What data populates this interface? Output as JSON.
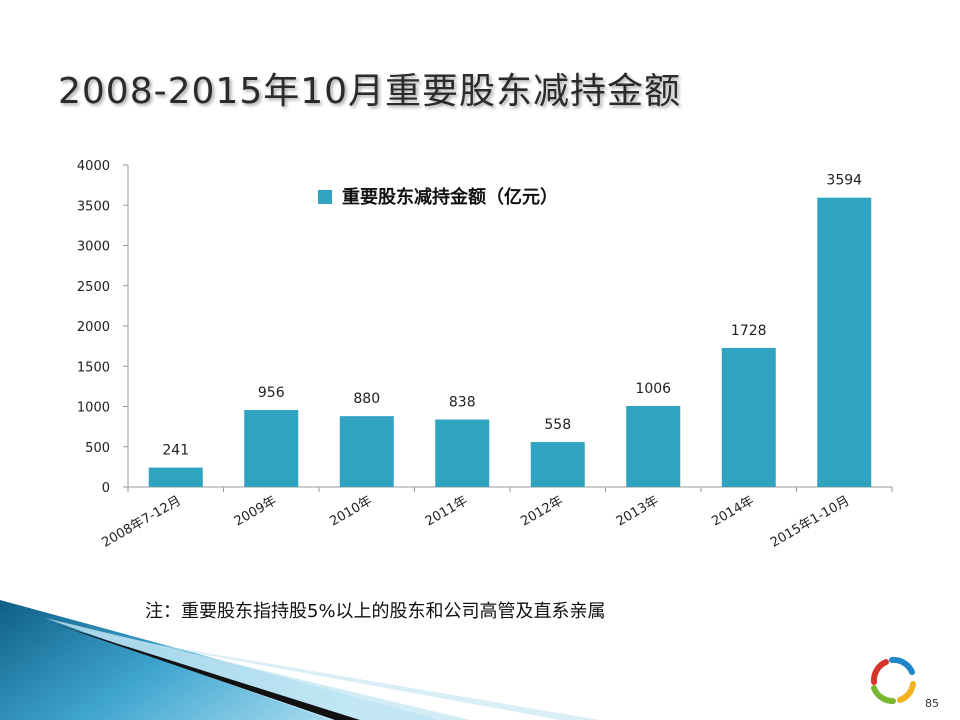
{
  "slide": {
    "title": "2008-2015年10月重要股东减持金额",
    "note": "注：重要股东指持股5%以上的股东和公司高管及直系亲属",
    "page_number": "85"
  },
  "colors": {
    "bar": "#2FA3C0",
    "axis": "#9a9a9a",
    "text": "#222222",
    "corner_dark": "#0f5f86",
    "corner_light": "#7cc7e3",
    "logo_red": "#d9342b",
    "logo_green": "#7ab833",
    "logo_blue": "#1f86c8",
    "logo_yellow": "#f2b21c"
  },
  "chart_data": {
    "type": "bar",
    "categories": [
      "2008年7-12月",
      "2009年",
      "2010年",
      "2011年",
      "2012年",
      "2013年",
      "2014年",
      "2015年1-10月"
    ],
    "series": [
      {
        "name": "重要股东减持金额（亿元）",
        "values": [
          241,
          956,
          880,
          838,
          558,
          1006,
          1728,
          3594
        ]
      }
    ],
    "data_labels": [
      "241",
      "956",
      "880",
      "838",
      "558",
      "1006",
      "1728",
      "3594"
    ],
    "y_ticks": [
      "0",
      "500",
      "1000",
      "1500",
      "2000",
      "2500",
      "3000",
      "3500",
      "4000"
    ],
    "ylim": [
      0,
      4000
    ],
    "y_step": 500,
    "grid": false,
    "legend_position": "top-center",
    "xlabel": "",
    "ylabel": ""
  }
}
